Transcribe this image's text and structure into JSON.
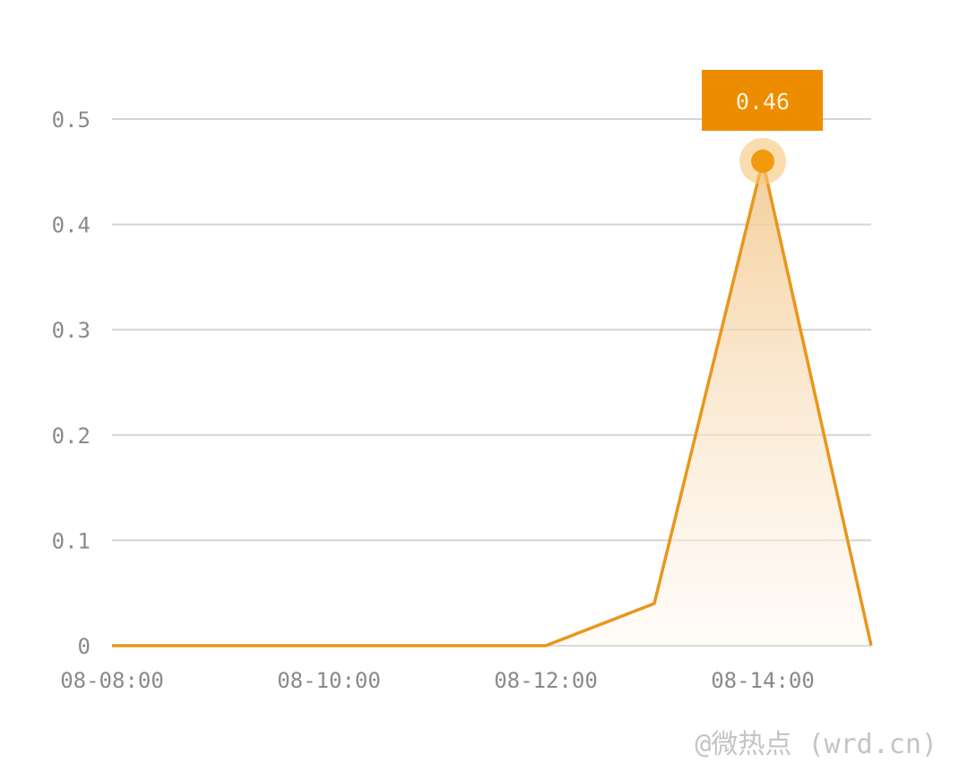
{
  "chart_data": {
    "type": "area",
    "title": "",
    "xlabel": "",
    "ylabel": "",
    "x": [
      "08-08:00",
      "08-09:00",
      "08-10:00",
      "08-11:00",
      "08-12:00",
      "08-13:00",
      "08-14:00",
      "08-15:00"
    ],
    "values": [
      0,
      0,
      0,
      0,
      0,
      0.04,
      0.46,
      0
    ],
    "x_tick_labels": [
      "08-08:00",
      "08-10:00",
      "08-12:00",
      "08-14:00"
    ],
    "y_tick_labels": [
      "0",
      "0.1",
      "0.2",
      "0.3",
      "0.4",
      "0.5"
    ],
    "y_ticks": [
      0,
      0.1,
      0.2,
      0.3,
      0.4,
      0.5
    ],
    "ylim": [
      0,
      0.5
    ],
    "grid": "horizontal",
    "legend": "none",
    "highlight": {
      "x": "08-14:00",
      "value": 0.46,
      "label": "0.46"
    },
    "colors": {
      "line": "#e8961c",
      "marker": "#f29a0e",
      "tooltip_bg": "#ee8c00",
      "tooltip_text": "#fff4d8",
      "grid": "#d4d4d4",
      "fill_top": "#f3c98f"
    }
  },
  "watermark": "@微热点 (wrd.cn)"
}
